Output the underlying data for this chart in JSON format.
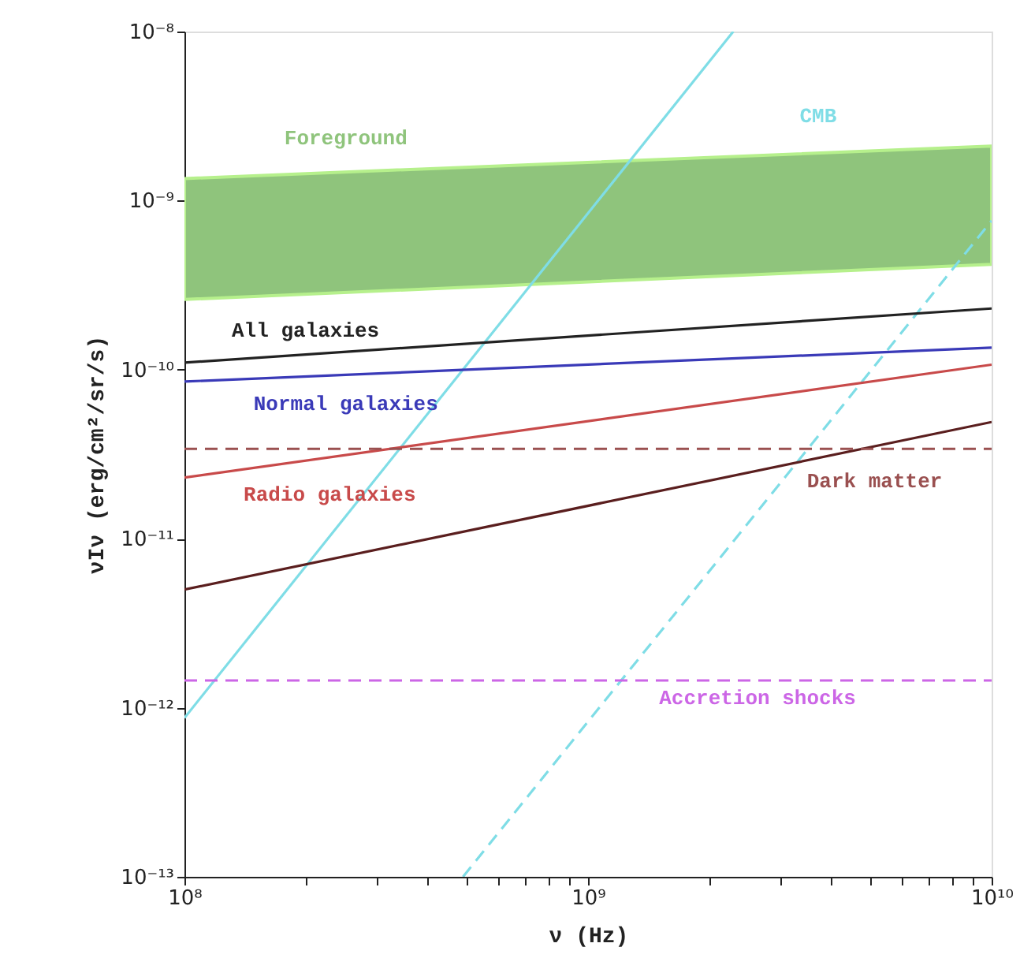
{
  "chart_data": {
    "type": "line",
    "xlabel": "ν (Hz)",
    "ylabel": "νIν (erg/cm²/sr/s)",
    "log": "xy",
    "grid": false,
    "xlim": [
      100000000.0,
      10000000000.0
    ],
    "ylim": [
      1e-13,
      1e-08
    ],
    "xticks": [
      {
        "value": 100000000.0,
        "label": "10⁸"
      },
      {
        "value": 200000000.0,
        "label": null
      },
      {
        "value": 300000000.0,
        "label": null
      },
      {
        "value": 400000000.0,
        "label": null
      },
      {
        "value": 500000000.0,
        "label": null
      },
      {
        "value": 600000000.0,
        "label": null
      },
      {
        "value": 700000000.0,
        "label": null
      },
      {
        "value": 800000000.0,
        "label": null
      },
      {
        "value": 900000000.0,
        "label": null
      },
      {
        "value": 1000000000.0,
        "label": "10⁹"
      },
      {
        "value": 2000000000.0,
        "label": null
      },
      {
        "value": 3000000000.0,
        "label": null
      },
      {
        "value": 4000000000.0,
        "label": null
      },
      {
        "value": 5000000000.0,
        "label": null
      },
      {
        "value": 6000000000.0,
        "label": null
      },
      {
        "value": 7000000000.0,
        "label": null
      },
      {
        "value": 8000000000.0,
        "label": null
      },
      {
        "value": 9000000000.0,
        "label": null
      },
      {
        "value": 10000000000.0,
        "label": "10¹⁰"
      }
    ],
    "yticks": [
      {
        "value": 1e-13,
        "label": "10⁻¹³"
      },
      {
        "value": 1e-12,
        "label": "10⁻¹²"
      },
      {
        "value": 1e-11,
        "label": "10⁻¹¹"
      },
      {
        "value": 1e-10,
        "label": "10⁻¹⁰"
      },
      {
        "value": 1e-09,
        "label": "10⁻⁹"
      },
      {
        "value": 1e-08,
        "label": "10⁻⁸"
      }
    ],
    "series": [
      {
        "name": "Foreground",
        "type": "area",
        "color": "#8fc47c",
        "x": [
          100000000.0,
          10000000000.0
        ],
        "values": [
          null,
          null
        ],
        "lower": [
          2.6e-10,
          4.2e-10
        ],
        "upper": [
          1.35e-09,
          2.1e-09
        ]
      },
      {
        "name": "CMB",
        "color": "#7fdde6",
        "x": [
          100000000.0,
          2290000000.0
        ],
        "values": [
          8.7e-13,
          1e-08
        ]
      },
      {
        "color": "#7fdde6",
        "line_style": "dashed",
        "x": [
          490000000.0,
          10000000000.0
        ],
        "values": [
          1e-13,
          7.6e-10
        ]
      },
      {
        "name": "All galaxies",
        "color": "#222222",
        "x": [
          100000000.0,
          10000000000.0
        ],
        "values": [
          1.1e-10,
          2.3e-10
        ]
      },
      {
        "name": "Normal galaxies",
        "color": "#3a3ab8",
        "x": [
          100000000.0,
          10000000000.0
        ],
        "values": [
          8.5e-11,
          1.35e-10
        ]
      },
      {
        "name": "Radio galaxies",
        "color": "#c84a4a",
        "x": [
          100000000.0,
          10000000000.0
        ],
        "values": [
          2.3e-11,
          1.07e-10
        ]
      },
      {
        "color": "#5a1e1e",
        "x": [
          100000000.0,
          10000000000.0
        ],
        "values": [
          5e-12,
          4.9e-11
        ]
      },
      {
        "name": "Dark matter",
        "color": "#9a5050",
        "line_style": "dashed",
        "x": [
          100000000.0,
          10000000000.0
        ],
        "values": [
          3.4e-11,
          3.4e-11
        ]
      },
      {
        "name": "Accretion shocks",
        "color": "#cc66e6",
        "line_style": "dashed",
        "x": [
          100000000.0,
          10000000000.0
        ],
        "values": [
          1.45e-12,
          1.45e-12
        ]
      }
    ]
  }
}
